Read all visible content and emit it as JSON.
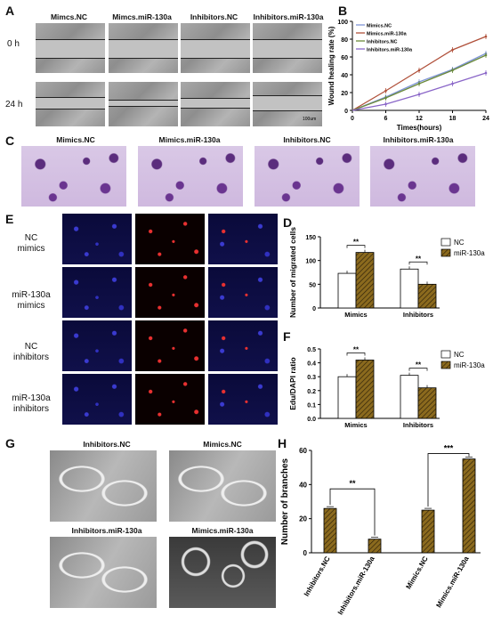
{
  "panels": {
    "A": "A",
    "B": "B",
    "C": "C",
    "D": "D",
    "E": "E",
    "F": "F",
    "G": "G",
    "H": "H"
  },
  "panel_a": {
    "columns": [
      "Mimcs.NC",
      "Mimcs.miR-130a",
      "Inhibitors.NC",
      "Inhibitors.miR-130a"
    ],
    "rows": [
      "0 h",
      "24 h"
    ],
    "scale": "100um"
  },
  "panel_c": {
    "columns": [
      "Mimics.NC",
      "Mimics.miR-130a",
      "Inhibitors.NC",
      "Inhibitors.miR-130a"
    ]
  },
  "panel_e": {
    "rows": [
      {
        "line1": "NC",
        "line2": "mimics"
      },
      {
        "line1": "miR-130a",
        "line2": "mimics"
      },
      {
        "line1": "NC",
        "line2": "inhibitors"
      },
      {
        "line1": "miR-130a",
        "line2": "inhibitors"
      }
    ]
  },
  "panel_g": {
    "titles": [
      "Inhibitors.NC",
      "Mimics.NC",
      "Inhibitors.miR-130a",
      "Mimics.miR-130a"
    ]
  },
  "colors": {
    "bar_hatch": "#8b6a1e",
    "mimics_nc": "#7f95d6",
    "mimics_mir": "#b0503a",
    "inhib_nc": "#6b8a3a",
    "inhib_mir": "#8a66c8"
  },
  "chart_data": [
    {
      "id": "B",
      "type": "line",
      "xlabel": "Times(hours)",
      "ylabel": "Wound healing rate (%)",
      "x": [
        0,
        6,
        12,
        18,
        24
      ],
      "xlim": [
        0,
        24
      ],
      "ylim": [
        0,
        100
      ],
      "yticks": [
        0,
        20,
        40,
        60,
        80,
        100
      ],
      "series": [
        {
          "name": "Mimics.NC",
          "values": [
            0,
            15,
            32,
            46,
            64
          ]
        },
        {
          "name": "Mimics.miR-130a",
          "values": [
            0,
            22,
            45,
            68,
            83
          ]
        },
        {
          "name": "Inhibitors.NC",
          "values": [
            0,
            14,
            30,
            45,
            62
          ]
        },
        {
          "name": "Inhibitors.miR-130a",
          "values": [
            0,
            7,
            18,
            30,
            42
          ]
        }
      ]
    },
    {
      "id": "D",
      "type": "bar",
      "ylabel": "Number of migrated cells",
      "categories": [
        "Mimics",
        "Inhibitors"
      ],
      "ylim": [
        0,
        150
      ],
      "yticks": [
        0,
        50,
        100,
        150
      ],
      "series": [
        {
          "name": "NC",
          "values": [
            73,
            82
          ]
        },
        {
          "name": "miR-130a",
          "values": [
            117,
            50
          ]
        }
      ],
      "annotations": [
        "**",
        "**"
      ]
    },
    {
      "id": "F",
      "type": "bar",
      "ylabel": "Edu/DAPI ratio",
      "categories": [
        "Mimics",
        "Inhibitors"
      ],
      "ylim": [
        0,
        0.5
      ],
      "yticks": [
        0.0,
        0.1,
        0.2,
        0.3,
        0.4,
        0.5
      ],
      "series": [
        {
          "name": "NC",
          "values": [
            0.3,
            0.31
          ]
        },
        {
          "name": "miR-130a",
          "values": [
            0.42,
            0.22
          ]
        }
      ],
      "annotations": [
        "**",
        "**"
      ]
    },
    {
      "id": "H",
      "type": "bar",
      "ylabel": "Number of branches",
      "categories": [
        "Inhibitors.NC",
        "Inhibitors.miR-130a",
        "Mimics.NC",
        "Mimics.miR-130a"
      ],
      "ylim": [
        0,
        60
      ],
      "yticks": [
        0,
        20,
        40,
        60
      ],
      "values": [
        26,
        8,
        25,
        55
      ],
      "annotations": [
        "**",
        "***"
      ]
    }
  ]
}
